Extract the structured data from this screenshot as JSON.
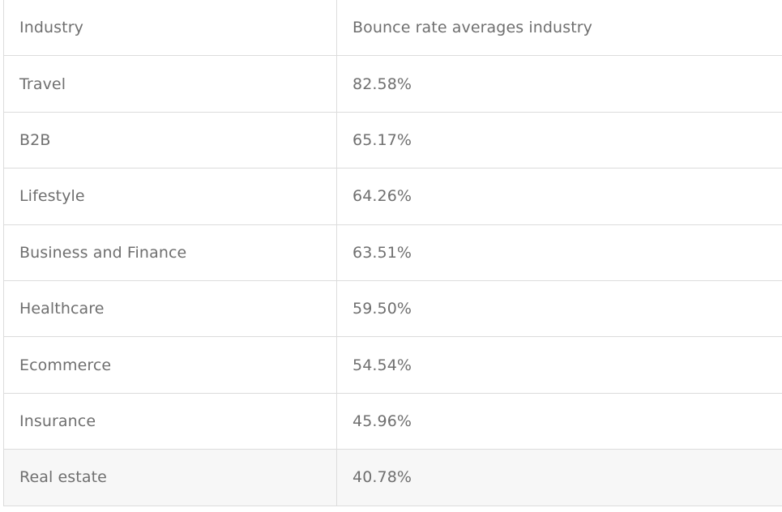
{
  "table": {
    "headers": [
      "Industry",
      "Bounce rate averages industry"
    ],
    "rows": [
      {
        "industry": "Travel",
        "rate": "82.58%"
      },
      {
        "industry": "B2B",
        "rate": "65.17%"
      },
      {
        "industry": "Lifestyle",
        "rate": "64.26%"
      },
      {
        "industry": "Business and Finance",
        "rate": "63.51%"
      },
      {
        "industry": "Healthcare",
        "rate": "59.50%"
      },
      {
        "industry": "Ecommerce",
        "rate": "54.54%"
      },
      {
        "industry": "Insurance",
        "rate": "45.96%"
      },
      {
        "industry": "Real estate",
        "rate": "40.78%"
      }
    ]
  },
  "colors": {
    "text": "#6f6f6f",
    "border": "#dcdcdc",
    "last_row_background": "#f7f7f7"
  }
}
